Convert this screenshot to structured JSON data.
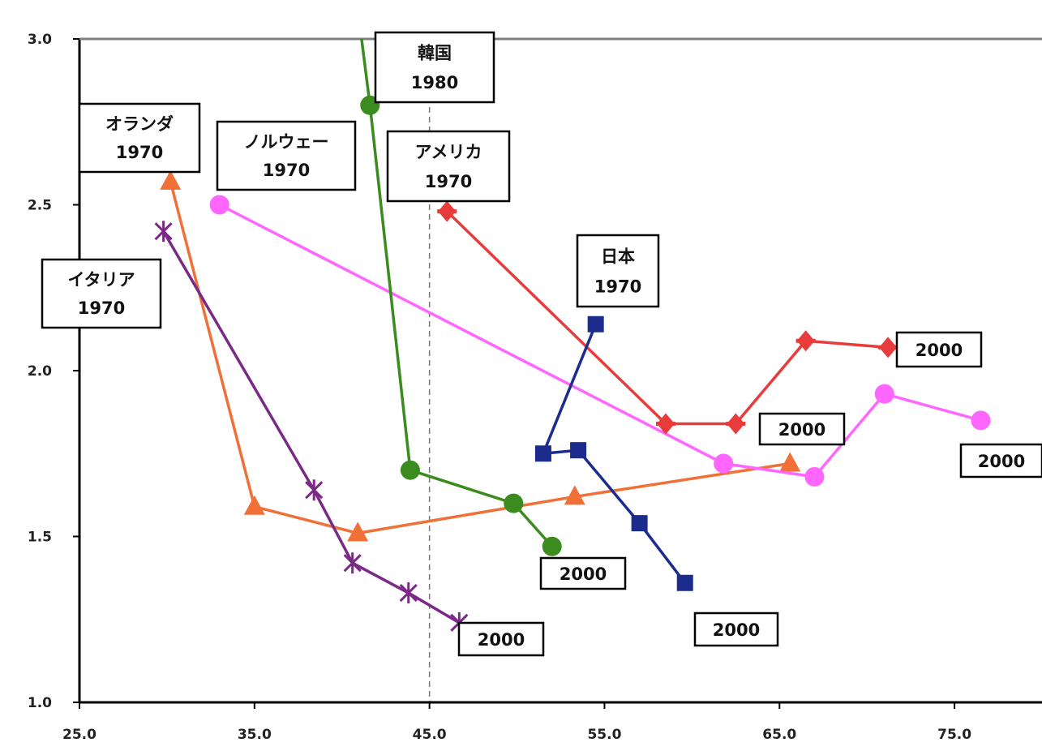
{
  "caption": "",
  "chart_data": {
    "type": "line",
    "title": "",
    "xlabel": "",
    "ylabel": "",
    "xlim": [
      25,
      80
    ],
    "ylim": [
      1.0,
      3.0
    ],
    "x_ticks": [
      "25.0",
      "35.0",
      "45.0",
      "55.0",
      "65.0",
      "75.0"
    ],
    "y_ticks": [
      "1.0",
      "1.5",
      "2.0",
      "2.5",
      "3.0"
    ],
    "reference_line_x": 45.0,
    "grid": false,
    "series": [
      {
        "name": "オランダ",
        "color": "#f07038",
        "marker": "triangle",
        "points": [
          [
            30.2,
            2.57
          ],
          [
            35.0,
            1.59
          ],
          [
            40.9,
            1.51
          ],
          [
            53.3,
            1.62
          ],
          [
            65.6,
            1.72
          ]
        ]
      },
      {
        "name": "ノルウェー",
        "color": "#ff66ff",
        "marker": "circle",
        "points": [
          [
            33.0,
            2.5
          ],
          [
            61.8,
            1.72
          ],
          [
            67.0,
            1.68
          ],
          [
            71.0,
            1.93
          ],
          [
            76.5,
            1.85
          ]
        ]
      },
      {
        "name": "アメリカ",
        "color": "#e83c3c",
        "marker": "diamond",
        "points": [
          [
            46.0,
            2.48
          ],
          [
            58.5,
            1.84
          ],
          [
            62.5,
            1.84
          ],
          [
            66.5,
            2.09
          ],
          [
            71.2,
            2.07
          ]
        ]
      },
      {
        "name": "韓国",
        "color": "#3a8c1e",
        "marker": "circle",
        "points": [
          [
            41.0,
            3.05
          ],
          [
            41.6,
            2.8
          ],
          [
            43.9,
            1.7
          ],
          [
            49.8,
            1.6
          ],
          [
            52.0,
            1.47
          ]
        ]
      },
      {
        "name": "日本",
        "color": "#1c2c8c",
        "marker": "square",
        "points": [
          [
            54.5,
            2.14
          ],
          [
            51.5,
            1.75
          ],
          [
            53.5,
            1.76
          ],
          [
            57.0,
            1.54
          ],
          [
            59.6,
            1.36
          ]
        ]
      },
      {
        "name": "イタリア",
        "color": "#7a2a86",
        "marker": "star",
        "points": [
          [
            29.8,
            2.42
          ],
          [
            38.4,
            1.64
          ],
          [
            40.6,
            1.42
          ],
          [
            43.8,
            1.33
          ],
          [
            46.7,
            1.24
          ]
        ]
      }
    ],
    "annotations": [
      {
        "line1": "オランダ",
        "line2": "1970"
      },
      {
        "line1": "ノルウェー",
        "line2": "1970"
      },
      {
        "line1": "韓国",
        "line2": "1980"
      },
      {
        "line1": "アメリカ",
        "line2": "1970"
      },
      {
        "line1": "日本",
        "line2": "1970"
      },
      {
        "line1": "イタリア",
        "line2": "1970"
      },
      {
        "line1": "2000",
        "line2": ""
      },
      {
        "line1": "2000",
        "line2": ""
      },
      {
        "line1": "2000",
        "line2": ""
      },
      {
        "line1": "2000",
        "line2": ""
      },
      {
        "line1": "2000",
        "line2": ""
      },
      {
        "line1": "2000",
        "line2": ""
      }
    ]
  }
}
